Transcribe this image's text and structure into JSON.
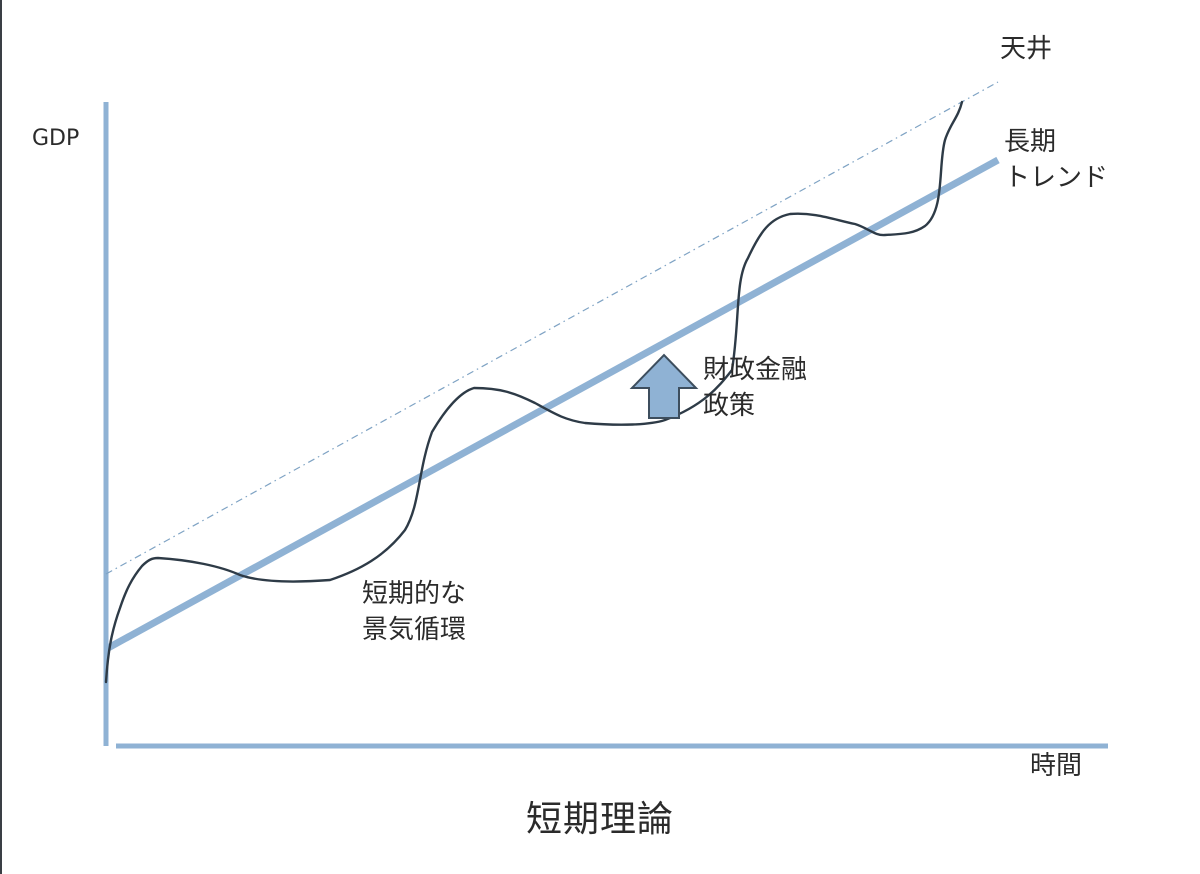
{
  "diagram": {
    "title": "短期理論",
    "y_axis_label": "GDP",
    "x_axis_label": "時間",
    "ceiling_label": "天井",
    "trend_label": [
      "長期",
      "トレンド"
    ],
    "policy_label": [
      "財政金融",
      "政策"
    ],
    "cycle_label": [
      "短期的な",
      "景気循環"
    ],
    "colors": {
      "axis": "#8fb2d4",
      "trend": "#8fb2d4",
      "ceiling": "#7fa3c4",
      "gdp_curve": "#2e3b47",
      "policy_arrow_fill": "#8fb2d4",
      "policy_arrow_stroke": "#3d4e5e",
      "text": "#2b2b2b"
    },
    "icons": {
      "policy_arrow": "up-arrow-icon"
    }
  }
}
